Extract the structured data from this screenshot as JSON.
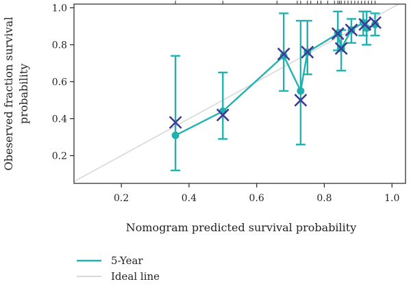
{
  "chart_data": {
    "type": "line",
    "xlabel": "Nomogram predicted survival probability",
    "ylabel_lines": [
      "Obeserved fraction survival",
      "probability"
    ],
    "xlim": [
      0.06,
      1.04
    ],
    "ylim": [
      0.05,
      1.02
    ],
    "x_ticks": [
      0.2,
      0.4,
      0.6,
      0.8,
      1.0
    ],
    "x_tick_labels": [
      "0.2",
      "0.4",
      "0.6",
      "0.8",
      "1.0"
    ],
    "y_ticks": [
      0.2,
      0.4,
      0.6,
      0.8,
      1.0
    ],
    "y_tick_labels": [
      "0.2",
      "0.4",
      "0.6",
      "0.8",
      "1.0"
    ],
    "ideal_line": {
      "x": [
        0.06,
        1.04
      ],
      "y": [
        0.06,
        1.04
      ]
    },
    "series": [
      {
        "name": "5-Year",
        "color": "#20b0b0",
        "x": [
          0.36,
          0.5,
          0.68,
          0.73,
          0.75,
          0.84,
          0.85,
          0.88,
          0.915,
          0.925,
          0.95
        ],
        "y": [
          0.31,
          0.44,
          0.74,
          0.55,
          0.76,
          0.86,
          0.78,
          0.88,
          0.92,
          0.89,
          0.91
        ],
        "lower": [
          0.12,
          0.29,
          0.55,
          0.26,
          0.64,
          0.77,
          0.66,
          0.81,
          0.85,
          0.8,
          0.85
        ],
        "upper": [
          0.74,
          0.65,
          0.97,
          0.93,
          0.93,
          0.98,
          0.88,
          0.94,
          0.98,
          0.98,
          0.97
        ]
      }
    ],
    "x_markers": {
      "x": [
        0.36,
        0.5,
        0.68,
        0.73,
        0.75,
        0.84,
        0.85,
        0.88,
        0.92,
        0.95
      ],
      "y": [
        0.38,
        0.42,
        0.75,
        0.5,
        0.76,
        0.86,
        0.78,
        0.88,
        0.91,
        0.92
      ]
    },
    "rug_x": [
      0.36,
      0.5,
      0.66,
      0.72,
      0.73,
      0.75,
      0.76,
      0.78,
      0.79,
      0.81,
      0.83,
      0.84,
      0.845,
      0.85,
      0.86,
      0.87,
      0.88,
      0.89,
      0.9,
      0.91,
      0.92,
      0.93,
      0.94,
      0.95
    ],
    "legend": [
      {
        "label": "5-Year",
        "color": "#20b0b0"
      },
      {
        "label": "Ideal line",
        "color": "#d8d8d8"
      }
    ],
    "legend_position": "bottom-left",
    "grid": false,
    "marker_color": "#3c3c96"
  }
}
